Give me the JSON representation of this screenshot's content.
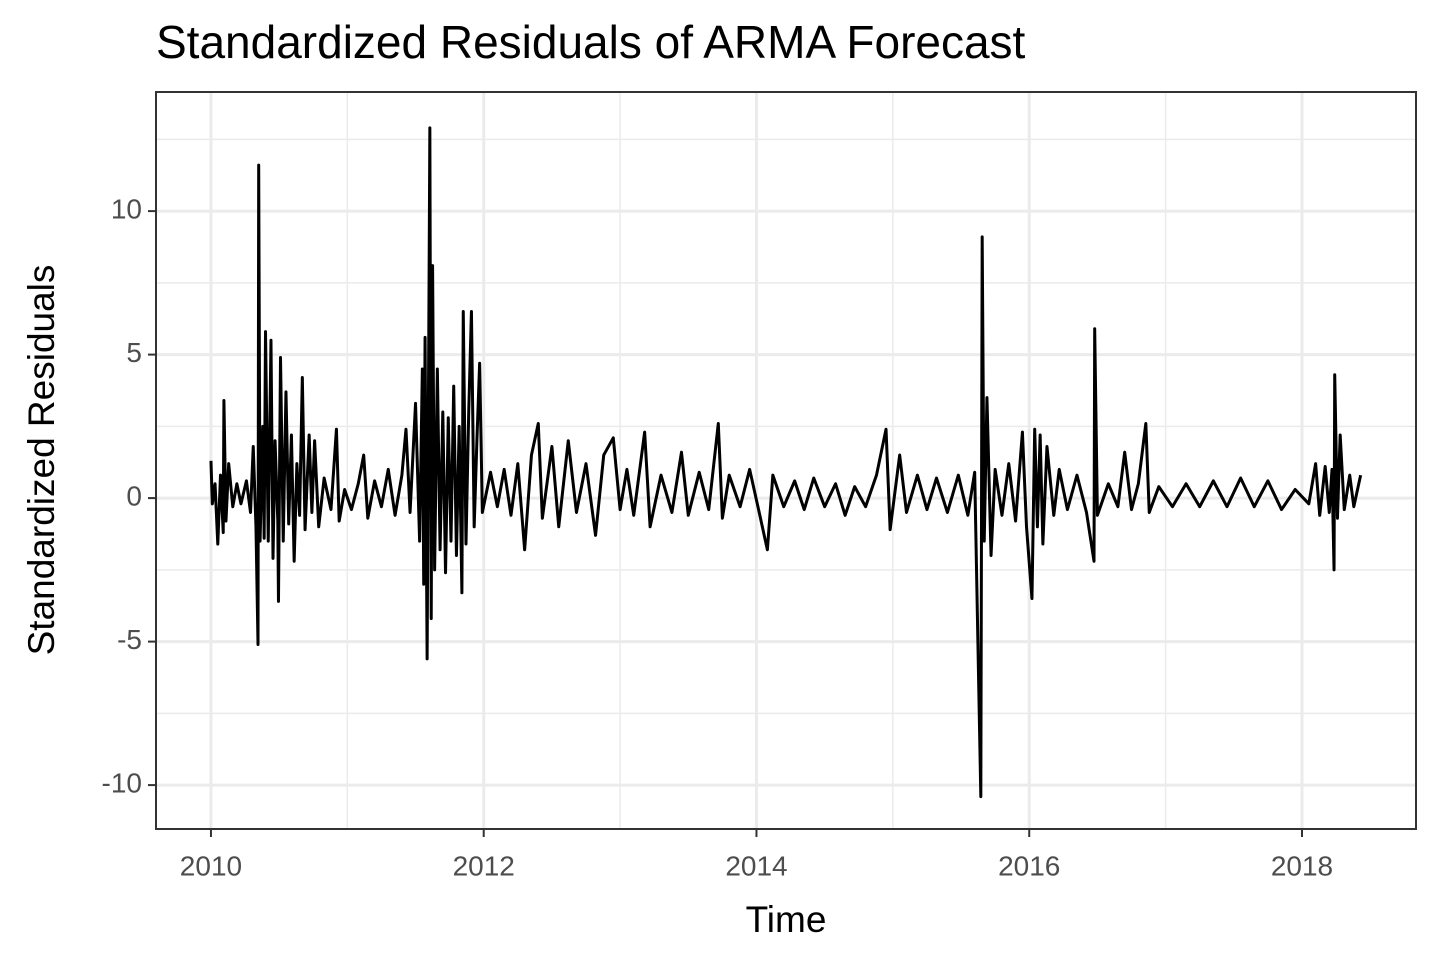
{
  "chart_data": {
    "type": "line",
    "title": "Standardized Residuals of ARMA Forecast",
    "x_label": "Time",
    "y_label": "Standardized Residuals",
    "xlim": [
      2009.597,
      2018.836
    ],
    "ylim": [
      -11.53,
      14.15
    ],
    "xticks": [
      2010,
      2012,
      2014,
      2016,
      2018
    ],
    "yticks": [
      -10,
      -5,
      0,
      5,
      10
    ],
    "x_minor_grid": [
      2011,
      2013,
      2015,
      2017
    ],
    "y_minor_grid": [
      -7.5,
      -2.5,
      2.5,
      7.5,
      12.5
    ],
    "grid": true,
    "x": [
      2010,
      2010.01,
      2010.03,
      2010.05,
      2010.07,
      2010.09,
      2010.095,
      2010.11,
      2010.13,
      2010.16,
      2010.19,
      2010.22,
      2010.26,
      2010.29,
      2010.31,
      2010.33,
      2010.345,
      2010.35,
      2010.36,
      2010.38,
      2010.39,
      2010.4,
      2010.42,
      2010.44,
      2010.455,
      2010.47,
      2010.49,
      2010.495,
      2010.51,
      2010.53,
      2010.55,
      2010.57,
      2010.59,
      2010.61,
      2010.63,
      2010.65,
      2010.67,
      2010.69,
      2010.72,
      2010.74,
      2010.76,
      2010.79,
      2010.83,
      2010.88,
      2010.92,
      2010.94,
      2010.98,
      2011.03,
      2011.08,
      2011.12,
      2011.15,
      2011.2,
      2011.25,
      2011.3,
      2011.35,
      2011.4,
      2011.43,
      2011.46,
      2011.5,
      2011.53,
      2011.55,
      2011.56,
      2011.57,
      2011.585,
      2011.605,
      2011.615,
      2011.625,
      2011.64,
      2011.66,
      2011.68,
      2011.7,
      2011.72,
      2011.74,
      2011.76,
      2011.78,
      2011.8,
      2011.82,
      2011.84,
      2011.85,
      2011.87,
      2011.89,
      2011.91,
      2011.93,
      2011.95,
      2011.97,
      2011.99,
      2012.05,
      2012.1,
      2012.15,
      2012.2,
      2012.25,
      2012.3,
      2012.35,
      2012.4,
      2012.43,
      2012.5,
      2012.55,
      2012.62,
      2012.68,
      2012.75,
      2012.82,
      2012.88,
      2012.95,
      2013,
      2013.05,
      2013.1,
      2013.18,
      2013.22,
      2013.3,
      2013.38,
      2013.45,
      2013.5,
      2013.58,
      2013.65,
      2013.72,
      2013.75,
      2013.8,
      2013.88,
      2013.95,
      2014.02,
      2014.08,
      2014.12,
      2014.2,
      2014.28,
      2014.35,
      2014.42,
      2014.5,
      2014.58,
      2014.65,
      2014.72,
      2014.8,
      2014.88,
      2014.95,
      2014.98,
      2015.05,
      2015.1,
      2015.18,
      2015.25,
      2015.32,
      2015.4,
      2015.48,
      2015.55,
      2015.6,
      2015.645,
      2015.655,
      2015.67,
      2015.69,
      2015.72,
      2015.75,
      2015.8,
      2015.85,
      2015.9,
      2015.95,
      2015.98,
      2016.02,
      2016.04,
      2016.06,
      2016.08,
      2016.1,
      2016.13,
      2016.18,
      2016.22,
      2016.28,
      2016.35,
      2016.42,
      2016.475,
      2016.48,
      2016.5,
      2016.58,
      2016.65,
      2016.7,
      2016.75,
      2016.8,
      2016.855,
      2016.88,
      2016.95,
      2017.05,
      2017.15,
      2017.25,
      2017.35,
      2017.45,
      2017.55,
      2017.65,
      2017.75,
      2017.85,
      2017.95,
      2018.05,
      2018.1,
      2018.13,
      2018.17,
      2018.2,
      2018.22,
      2018.235,
      2018.24,
      2018.26,
      2018.28,
      2018.31,
      2018.35,
      2018.38,
      2018.43
    ],
    "series": [
      {
        "color": "#000000",
        "values": [
          1.3,
          -0.2,
          0.5,
          -1.6,
          0.8,
          -1.2,
          3.4,
          -0.8,
          1.2,
          -0.3,
          0.5,
          -0.2,
          0.6,
          -0.5,
          1.8,
          -1.0,
          -5.1,
          11.6,
          -1.5,
          2.5,
          -1.4,
          5.8,
          -1.5,
          5.5,
          -2.1,
          2.0,
          -0.8,
          -3.6,
          4.9,
          -1.5,
          3.7,
          -0.9,
          2.2,
          -2.2,
          1.2,
          -0.6,
          4.2,
          -1.1,
          2.2,
          -0.5,
          2.0,
          -1.0,
          0.7,
          -0.4,
          2.4,
          -0.8,
          0.3,
          -0.4,
          0.5,
          1.5,
          -0.7,
          0.6,
          -0.3,
          1.0,
          -0.6,
          0.8,
          2.4,
          -0.5,
          3.3,
          -1.5,
          4.5,
          -3.0,
          5.6,
          -5.6,
          12.9,
          -4.2,
          8.1,
          -2.5,
          4.5,
          -1.8,
          3.0,
          -2.6,
          2.8,
          -1.5,
          3.9,
          -2.0,
          2.5,
          -3.3,
          6.5,
          -1.6,
          3.0,
          6.5,
          -1.0,
          2.0,
          4.7,
          -0.5,
          0.9,
          -0.3,
          1.0,
          -0.6,
          1.2,
          -1.8,
          1.5,
          2.6,
          -0.7,
          1.8,
          -1.0,
          2.0,
          -0.5,
          1.2,
          -1.3,
          1.5,
          2.1,
          -0.4,
          1.0,
          -0.6,
          2.3,
          -1.0,
          0.8,
          -0.5,
          1.6,
          -0.6,
          0.9,
          -0.4,
          2.6,
          -0.7,
          0.8,
          -0.3,
          1.0,
          -0.5,
          -1.8,
          0.8,
          -0.3,
          0.6,
          -0.4,
          0.7,
          -0.3,
          0.5,
          -0.6,
          0.4,
          -0.3,
          0.8,
          2.4,
          -1.1,
          1.5,
          -0.5,
          0.8,
          -0.4,
          0.7,
          -0.5,
          0.8,
          -0.6,
          0.9,
          -10.4,
          9.1,
          -1.5,
          3.5,
          -2.0,
          1.0,
          -0.6,
          1.2,
          -0.8,
          2.3,
          -1.0,
          -3.5,
          2.4,
          -1.0,
          2.2,
          -1.6,
          1.8,
          -0.6,
          1.0,
          -0.4,
          0.8,
          -0.5,
          -2.2,
          5.9,
          -0.6,
          0.5,
          -0.3,
          1.6,
          -0.4,
          0.5,
          2.6,
          -0.5,
          0.4,
          -0.3,
          0.5,
          -0.3,
          0.6,
          -0.3,
          0.7,
          -0.3,
          0.6,
          -0.4,
          0.3,
          -0.2,
          1.2,
          -0.6,
          1.1,
          -0.5,
          1.0,
          -2.5,
          4.3,
          -0.7,
          2.2,
          -0.4,
          0.8,
          -0.3,
          0.8
        ]
      }
    ]
  }
}
